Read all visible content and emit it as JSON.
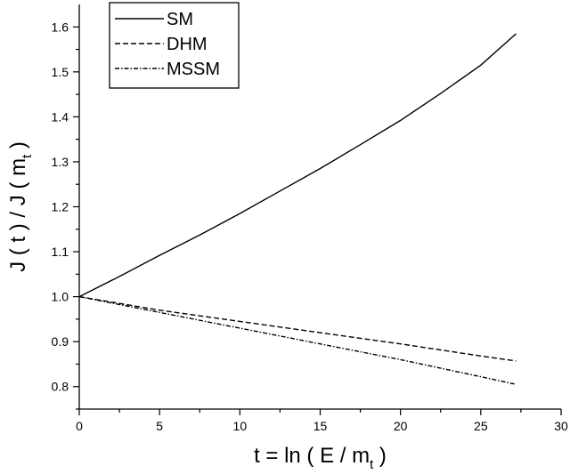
{
  "chart_data": {
    "type": "line",
    "xlabel": "t = ln ( E / m",
    "xlabel_subscript": "t",
    "xlabel_suffix": " )",
    "ylabel": "J ( t )  / J ( m",
    "ylabel_subscript": "t",
    "ylabel_suffix": " )",
    "xlim": [
      0,
      30
    ],
    "ylim": [
      0.75,
      1.65
    ],
    "x_ticks": [
      0,
      5,
      10,
      15,
      20,
      25,
      30
    ],
    "x_tick_labels": [
      "0",
      "5",
      "10",
      "15",
      "20",
      "25",
      "30"
    ],
    "y_ticks": [
      0.8,
      0.9,
      1.0,
      1.1,
      1.2,
      1.3,
      1.4,
      1.5,
      1.6
    ],
    "y_tick_labels": [
      "0.8",
      "0.9",
      "1.0",
      "1.1",
      "1.2",
      "1.3",
      "1.4",
      "1.5",
      "1.6"
    ],
    "grid": false,
    "legend_position": "top-left",
    "series": [
      {
        "name": "SM",
        "style": "solid",
        "x": [
          0,
          2.5,
          5,
          7.5,
          10,
          12.5,
          15,
          17.5,
          20,
          22.5,
          25,
          27.2
        ],
        "y": [
          1.0,
          1.045,
          1.092,
          1.137,
          1.185,
          1.235,
          1.285,
          1.338,
          1.392,
          1.452,
          1.515,
          1.585
        ]
      },
      {
        "name": "DHM",
        "style": "dashed",
        "x": [
          0,
          5,
          10,
          15,
          20,
          25,
          27.2
        ],
        "y": [
          1.0,
          0.97,
          0.945,
          0.92,
          0.895,
          0.868,
          0.857
        ]
      },
      {
        "name": "MSSM",
        "style": "dashdot",
        "x": [
          0,
          5,
          10,
          15,
          20,
          25,
          27.2
        ],
        "y": [
          1.0,
          0.965,
          0.93,
          0.895,
          0.86,
          0.822,
          0.805
        ]
      }
    ]
  }
}
